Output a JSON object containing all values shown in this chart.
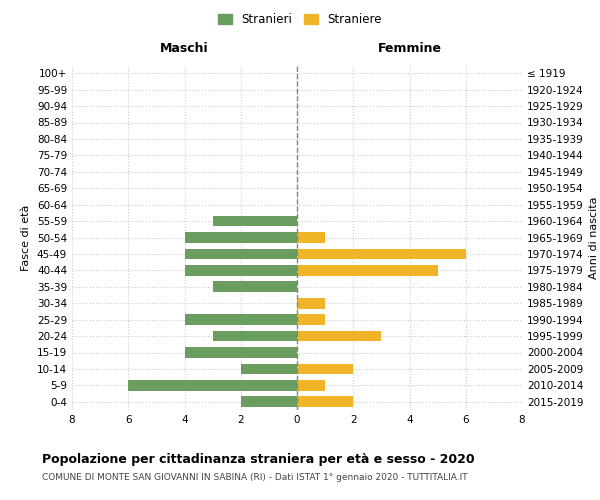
{
  "age_groups": [
    "0-4",
    "5-9",
    "10-14",
    "15-19",
    "20-24",
    "25-29",
    "30-34",
    "35-39",
    "40-44",
    "45-49",
    "50-54",
    "55-59",
    "60-64",
    "65-69",
    "70-74",
    "75-79",
    "80-84",
    "85-89",
    "90-94",
    "95-99",
    "100+"
  ],
  "birth_years": [
    "2015-2019",
    "2010-2014",
    "2005-2009",
    "2000-2004",
    "1995-1999",
    "1990-1994",
    "1985-1989",
    "1980-1984",
    "1975-1979",
    "1970-1974",
    "1965-1969",
    "1960-1964",
    "1955-1959",
    "1950-1954",
    "1945-1949",
    "1940-1944",
    "1935-1939",
    "1930-1934",
    "1925-1929",
    "1920-1924",
    "≤ 1919"
  ],
  "maschi": [
    2,
    6,
    2,
    4,
    3,
    4,
    0,
    3,
    4,
    4,
    4,
    3,
    0,
    0,
    0,
    0,
    0,
    0,
    0,
    0,
    0
  ],
  "femmine": [
    2,
    1,
    2,
    0,
    3,
    1,
    1,
    0,
    5,
    6,
    1,
    0,
    0,
    0,
    0,
    0,
    0,
    0,
    0,
    0,
    0
  ],
  "color_maschi": "#6a9e5e",
  "color_femmine": "#f0b429",
  "title": "Popolazione per cittadinanza straniera per età e sesso - 2020",
  "subtitle": "COMUNE DI MONTE SAN GIOVANNI IN SABINA (RI) - Dati ISTAT 1° gennaio 2020 - TUTTITALIA.IT",
  "ylabel_left": "Fasce di età",
  "ylabel_right": "Anni di nascita",
  "xlabel_maschi": "Maschi",
  "xlabel_femmine": "Femmine",
  "legend_maschi": "Stranieri",
  "legend_femmine": "Straniere",
  "xlim": 8,
  "background_color": "#ffffff",
  "grid_color": "#cccccc"
}
